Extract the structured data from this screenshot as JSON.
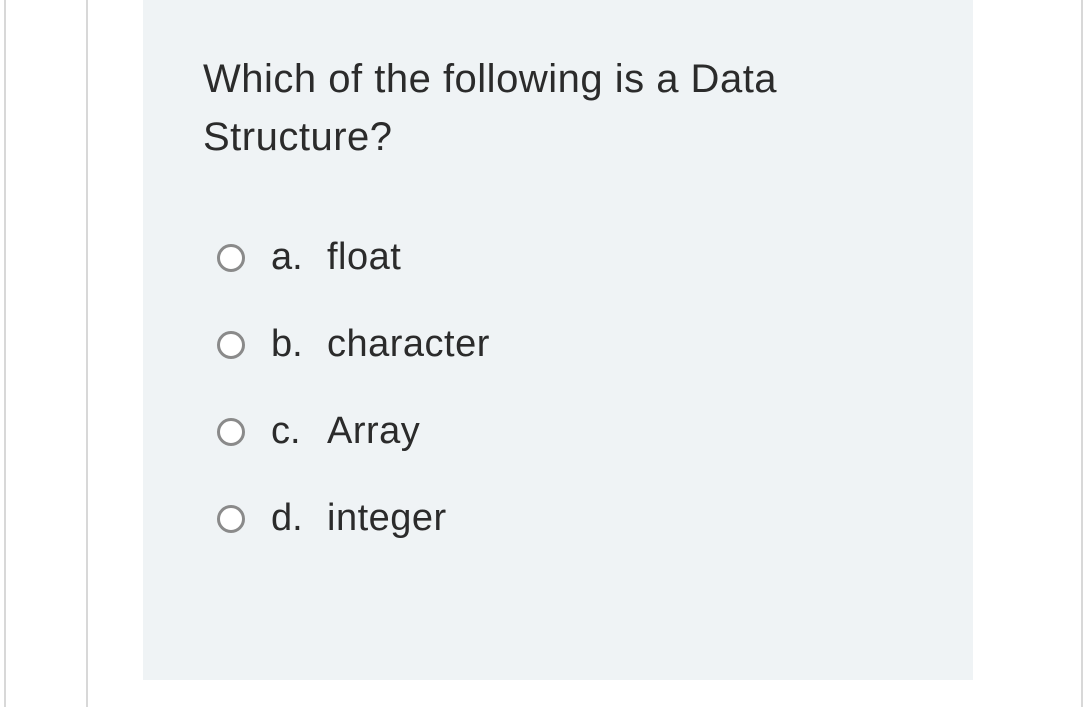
{
  "question": {
    "text": "Which of the following is a Data Structure?",
    "text_color": "#2b2b2b",
    "font_size": 40
  },
  "options": [
    {
      "letter": "a.",
      "label": "float"
    },
    {
      "letter": "b.",
      "label": "character"
    },
    {
      "letter": "c.",
      "label": "Array"
    },
    {
      "letter": "d.",
      "label": "integer"
    }
  ],
  "card": {
    "background_color": "#eff3f5"
  },
  "radio": {
    "border_color": "#8a8a8a",
    "fill_color": "#ffffff"
  },
  "page": {
    "border_color": "#d8d8d8",
    "background_color": "#ffffff"
  }
}
